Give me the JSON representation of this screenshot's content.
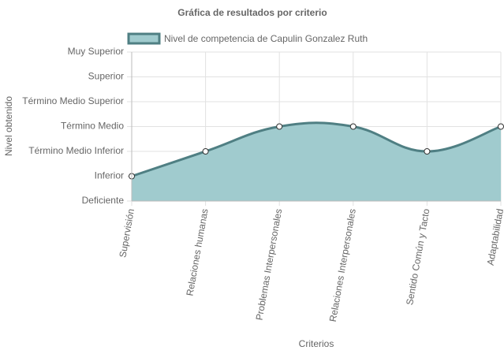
{
  "chart_data": {
    "type": "area",
    "title": "Gráfica de resultados por criterio",
    "x_label": "Criterios",
    "y_label": "Nivel obtenido",
    "categories": [
      "Supervisión",
      "Relaciones humanas",
      "Problemas Interpersonales",
      "Relaciones Interpersonales",
      "Sentido Común y Tacto",
      "Adaptabilidad"
    ],
    "series": [
      {
        "name": "Nivel de competencia de Capulin Gonzalez Ruth",
        "color": "#4f7f83",
        "fill": "#a0cbce",
        "values": [
          1,
          2,
          3,
          3,
          2,
          3
        ]
      }
    ],
    "ylim": [
      0,
      6
    ],
    "yticks": [
      {
        "value": 0,
        "label": "Deficiente"
      },
      {
        "value": 1,
        "label": "Inferior"
      },
      {
        "value": 2,
        "label": "Término Medio Inferior"
      },
      {
        "value": 3,
        "label": "Término Medio"
      },
      {
        "value": 4,
        "label": "Término Medio Superior"
      },
      {
        "value": 5,
        "label": "Superior"
      },
      {
        "value": 6,
        "label": "Muy Superior"
      }
    ],
    "grid": true
  }
}
